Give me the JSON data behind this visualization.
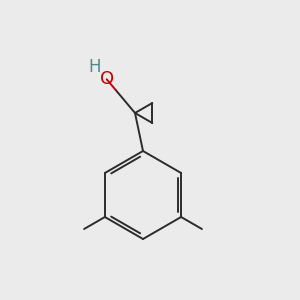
{
  "bg_color": "#ebebeb",
  "bond_color": "#2c2c2c",
  "O_color": "#cc0000",
  "H_color": "#4a8a8a",
  "line_width": 1.4,
  "font_size": 13,
  "font_size_h": 12
}
